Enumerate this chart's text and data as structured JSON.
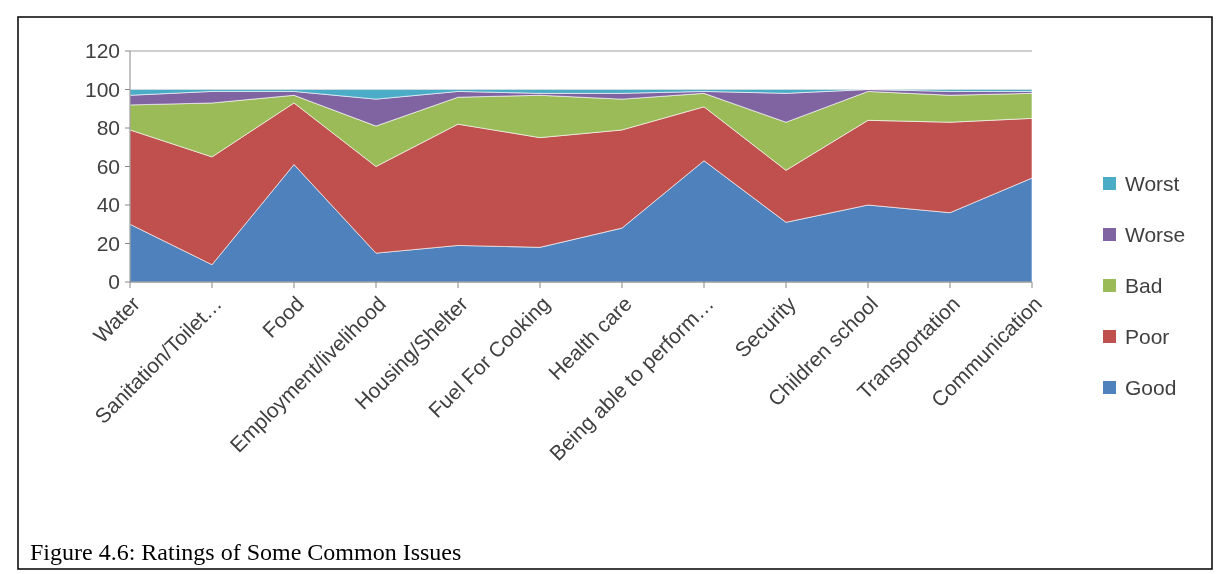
{
  "chart_data": {
    "type": "area",
    "stacked": true,
    "categories": [
      "Water",
      "Sanitation/Toilet…",
      "Food",
      "Employment/livelihood",
      "Housing/Shelter",
      "Fuel For Cooking",
      "Health care",
      "Being able to perform…",
      "Security",
      "Children school",
      "Transportation",
      "Communication"
    ],
    "series": [
      {
        "name": "Good",
        "color": "#4f81bd",
        "values": [
          30,
          9,
          61,
          15,
          19,
          18,
          28,
          63,
          31,
          40,
          36,
          54
        ]
      },
      {
        "name": "Poor",
        "color": "#c0504d",
        "values": [
          49,
          56,
          32,
          45,
          63,
          57,
          51,
          28,
          27,
          44,
          47,
          31
        ]
      },
      {
        "name": "Bad",
        "color": "#9bbb59",
        "values": [
          13,
          28,
          4,
          21,
          14,
          22,
          16,
          7,
          25,
          15,
          14,
          13
        ]
      },
      {
        "name": "Worse",
        "color": "#8064a2",
        "values": [
          5,
          6,
          2,
          14,
          3,
          1,
          3,
          1,
          15,
          1,
          2,
          1
        ]
      },
      {
        "name": "Worst",
        "color": "#4bacc6",
        "values": [
          3,
          1,
          1,
          5,
          1,
          2,
          2,
          1,
          2,
          0,
          1,
          1
        ]
      }
    ],
    "ylim": [
      0,
      120
    ],
    "yticks": [
      0,
      20,
      40,
      60,
      80,
      100,
      120
    ],
    "grid": "y",
    "legend": "right",
    "annotations": [
      "Figure 4.6: Ratings of Some Common Issues"
    ]
  }
}
